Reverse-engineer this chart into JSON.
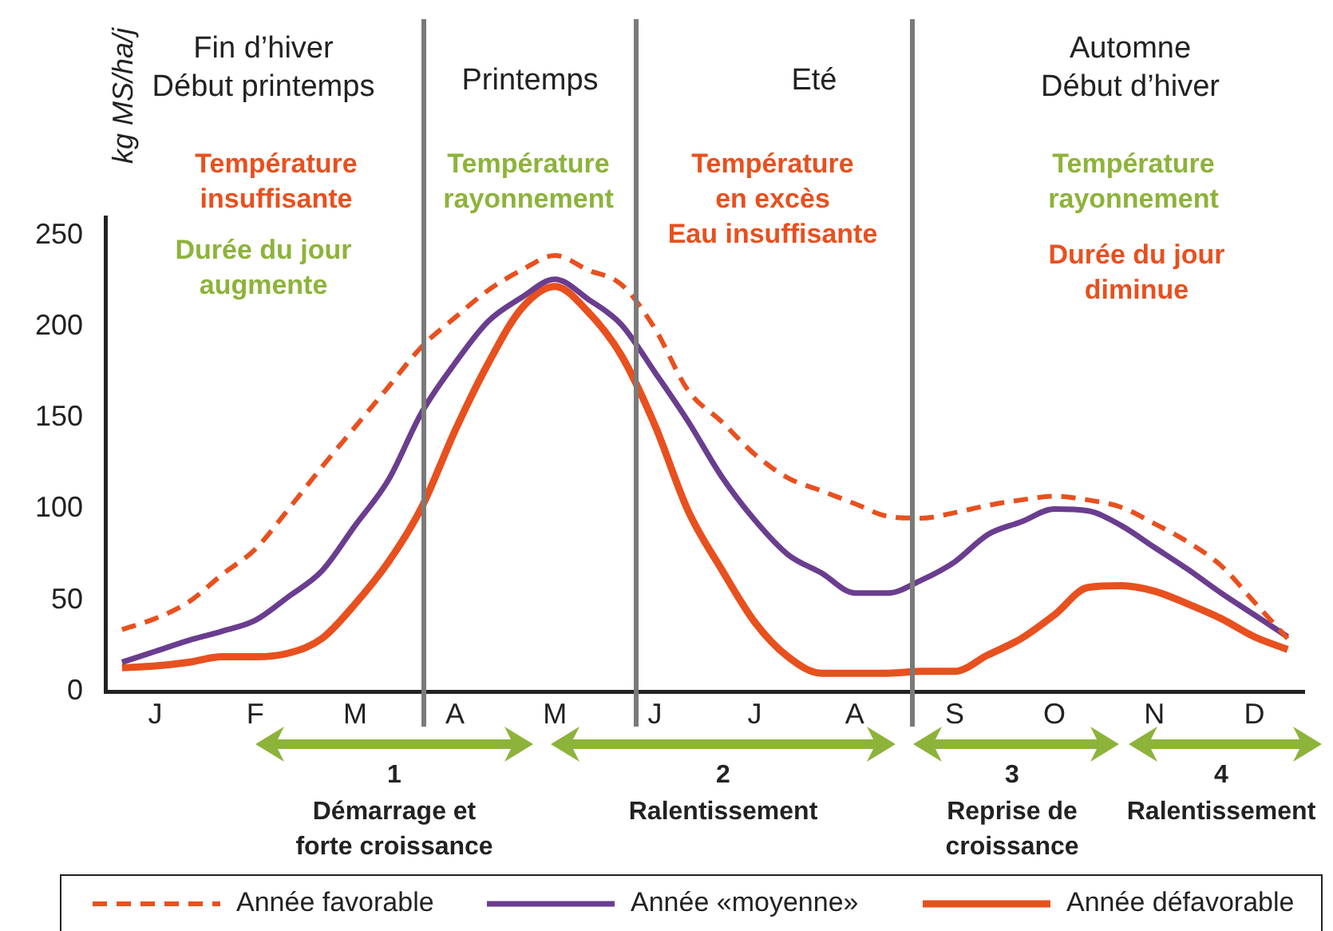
{
  "chart_data": {
    "type": "line",
    "ylabel": "kg MS/ha/j",
    "categories": [
      null,
      "J",
      null,
      null,
      "F",
      null,
      null,
      "M",
      null,
      null,
      "A",
      null,
      null,
      "M",
      null,
      null,
      "J",
      null,
      null,
      "J",
      null,
      null,
      "A",
      null,
      null,
      "S",
      null,
      null,
      "O",
      null,
      null,
      "N",
      null,
      null,
      "D",
      null
    ],
    "ylim": [
      0,
      260
    ],
    "yticks": [
      0,
      50,
      100,
      150,
      200,
      250
    ],
    "grid": false,
    "legend": "bottom",
    "marker": "none",
    "series": [
      {
        "name": "Année favorable",
        "color": "#e8501e",
        "line_style": "dashed",
        "values": [
          34,
          40,
          49,
          64,
          78,
          100,
          123,
          145,
          167,
          189,
          205,
          220,
          231,
          239,
          231,
          223,
          199,
          165,
          148,
          130,
          117,
          110,
          103,
          96,
          95,
          98,
          102,
          105,
          107,
          105,
          101,
          92,
          82,
          69,
          49,
          29
        ]
      },
      {
        "name": "Année «moyenne»",
        "color": "#6a3d8f",
        "line_style": "solid",
        "values": [
          16,
          22,
          28,
          33,
          39,
          52,
          66,
          91,
          116,
          153,
          180,
          203,
          216,
          226,
          215,
          201,
          175,
          148,
          118,
          94,
          75,
          65,
          54,
          54,
          61,
          71,
          86,
          93,
          100,
          99,
          91,
          79,
          67,
          54,
          42,
          30
        ]
      },
      {
        "name": "Année défavorable",
        "color": "#e8501e",
        "line_style": "solid",
        "values": [
          13,
          14,
          16,
          19,
          19,
          21,
          29,
          48,
          71,
          101,
          143,
          180,
          210,
          222,
          208,
          184,
          146,
          99,
          67,
          38,
          19,
          10,
          10,
          10,
          11,
          11,
          20,
          29,
          42,
          57,
          58,
          55,
          48,
          40,
          30,
          23
        ]
      }
    ],
    "annotations": [
      "Fin d’hiver\nDébut printemps",
      "Printemps",
      "Eté",
      "Automne\nDébut d’hiver",
      "Température\ninsuffisante",
      "Durée du jour\naugmente",
      "Température\nrayonnement",
      "Température\nen excès\nEau insuffisante",
      "Température\nrayonnement",
      "Durée du jour\ndiminue",
      "1",
      "Démarrage et\nforte croissance",
      "2",
      "Ralentissement",
      "3",
      "Reprise de\ncroissance",
      "4",
      "Ralentissement"
    ]
  }
}
